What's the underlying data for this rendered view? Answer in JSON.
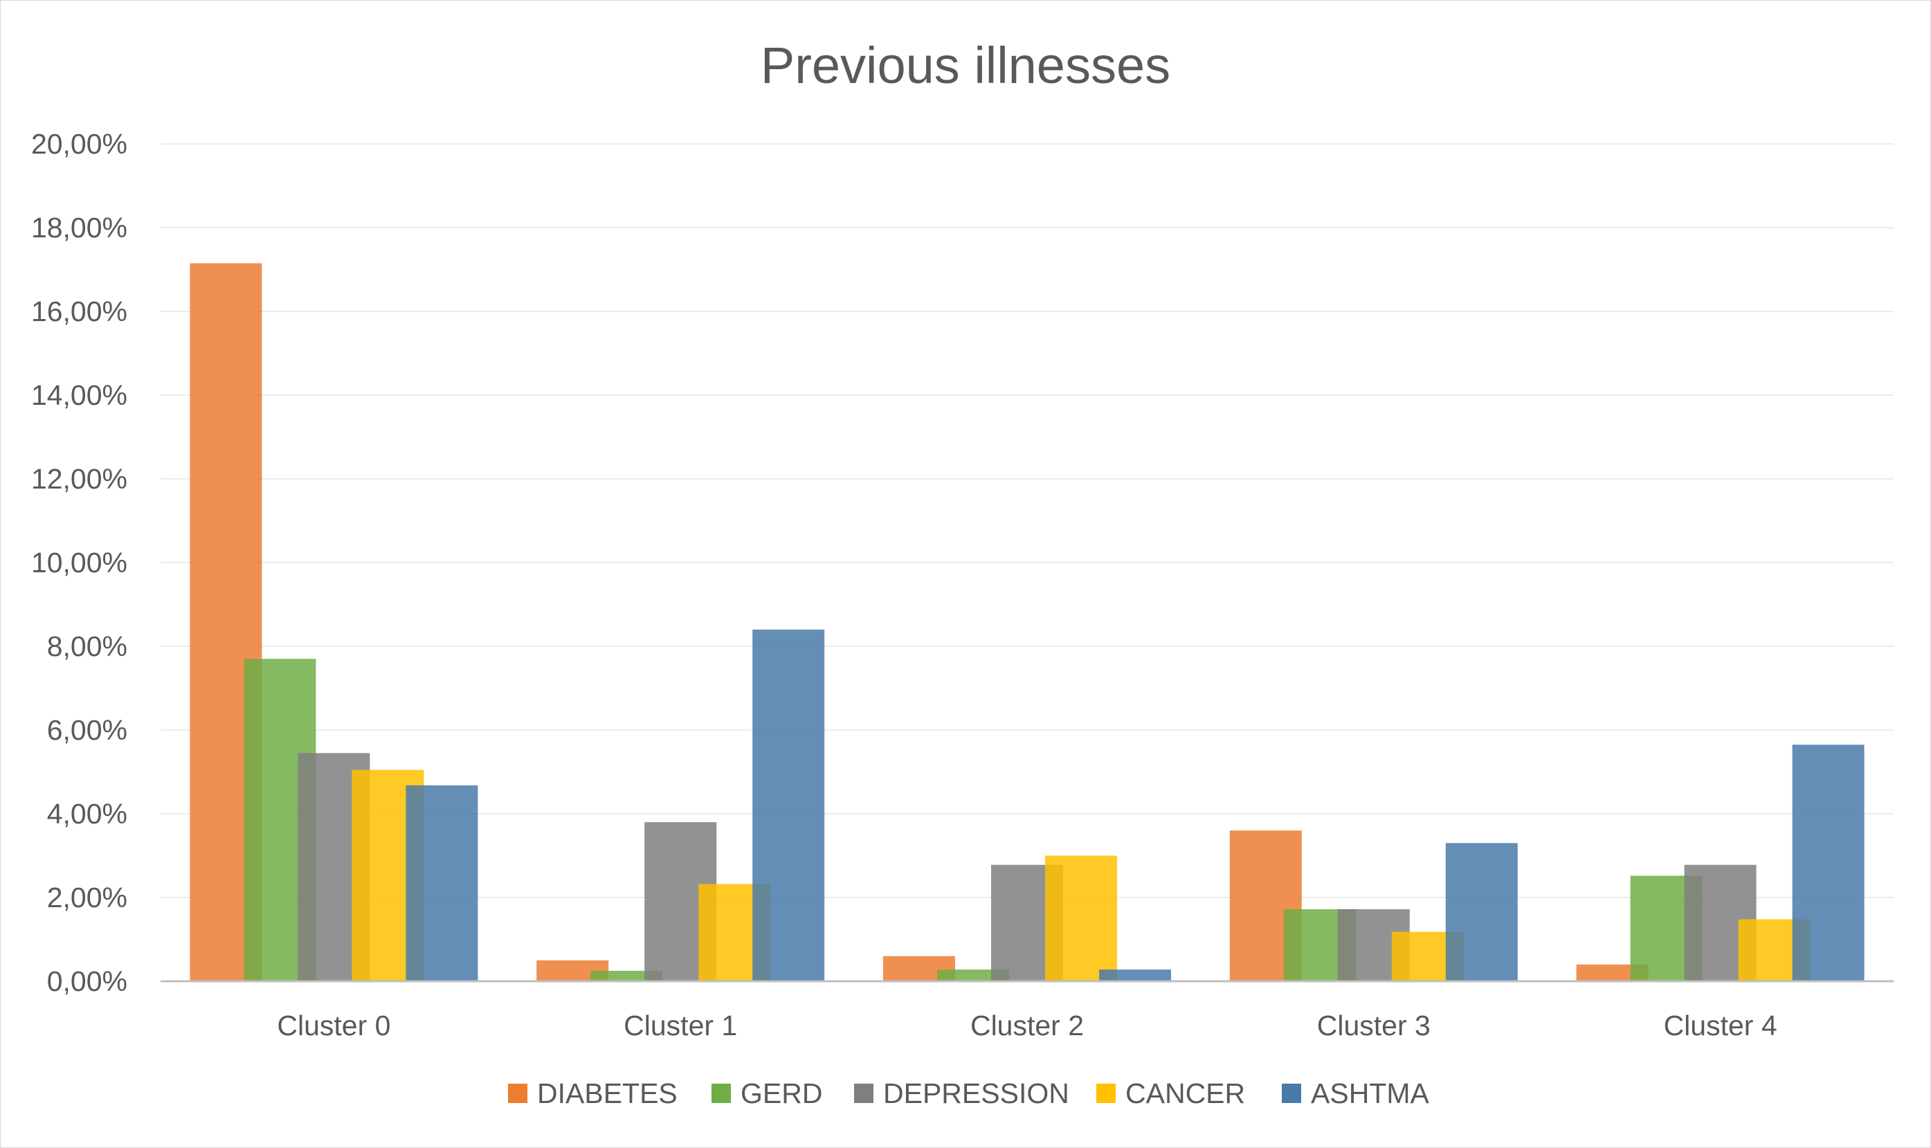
{
  "chart_data": {
    "type": "bar",
    "title": "Previous illnesses",
    "xlabel": "",
    "ylabel": "",
    "categories": [
      "Cluster 0",
      "Cluster 1",
      "Cluster 2",
      "Cluster 3",
      "Cluster 4"
    ],
    "series": [
      {
        "name": "DIABETES",
        "color": "#ED7D31",
        "values": [
          17.15,
          0.5,
          0.6,
          3.6,
          0.4
        ]
      },
      {
        "name": "GERD",
        "color": "#70AD47",
        "values": [
          7.7,
          0.25,
          0.28,
          1.72,
          2.52
        ]
      },
      {
        "name": "DEPRESSION",
        "color": "#7F7F7F",
        "values": [
          5.45,
          3.8,
          2.78,
          1.72,
          2.78
        ]
      },
      {
        "name": "CANCER",
        "color": "#FFC000",
        "values": [
          5.05,
          2.32,
          3.0,
          1.18,
          1.48
        ]
      },
      {
        "name": "ASHTMA",
        "color": "#4A7AAA",
        "values": [
          4.68,
          8.4,
          0.28,
          3.3,
          5.65
        ]
      }
    ],
    "ylim": [
      0,
      20
    ],
    "yticks": [
      "0,00%",
      "2,00%",
      "4,00%",
      "6,00%",
      "8,00%",
      "10,00%",
      "12,00%",
      "14,00%",
      "16,00%",
      "18,00%",
      "20,00%"
    ],
    "grid": true,
    "legend_position": "bottom"
  }
}
